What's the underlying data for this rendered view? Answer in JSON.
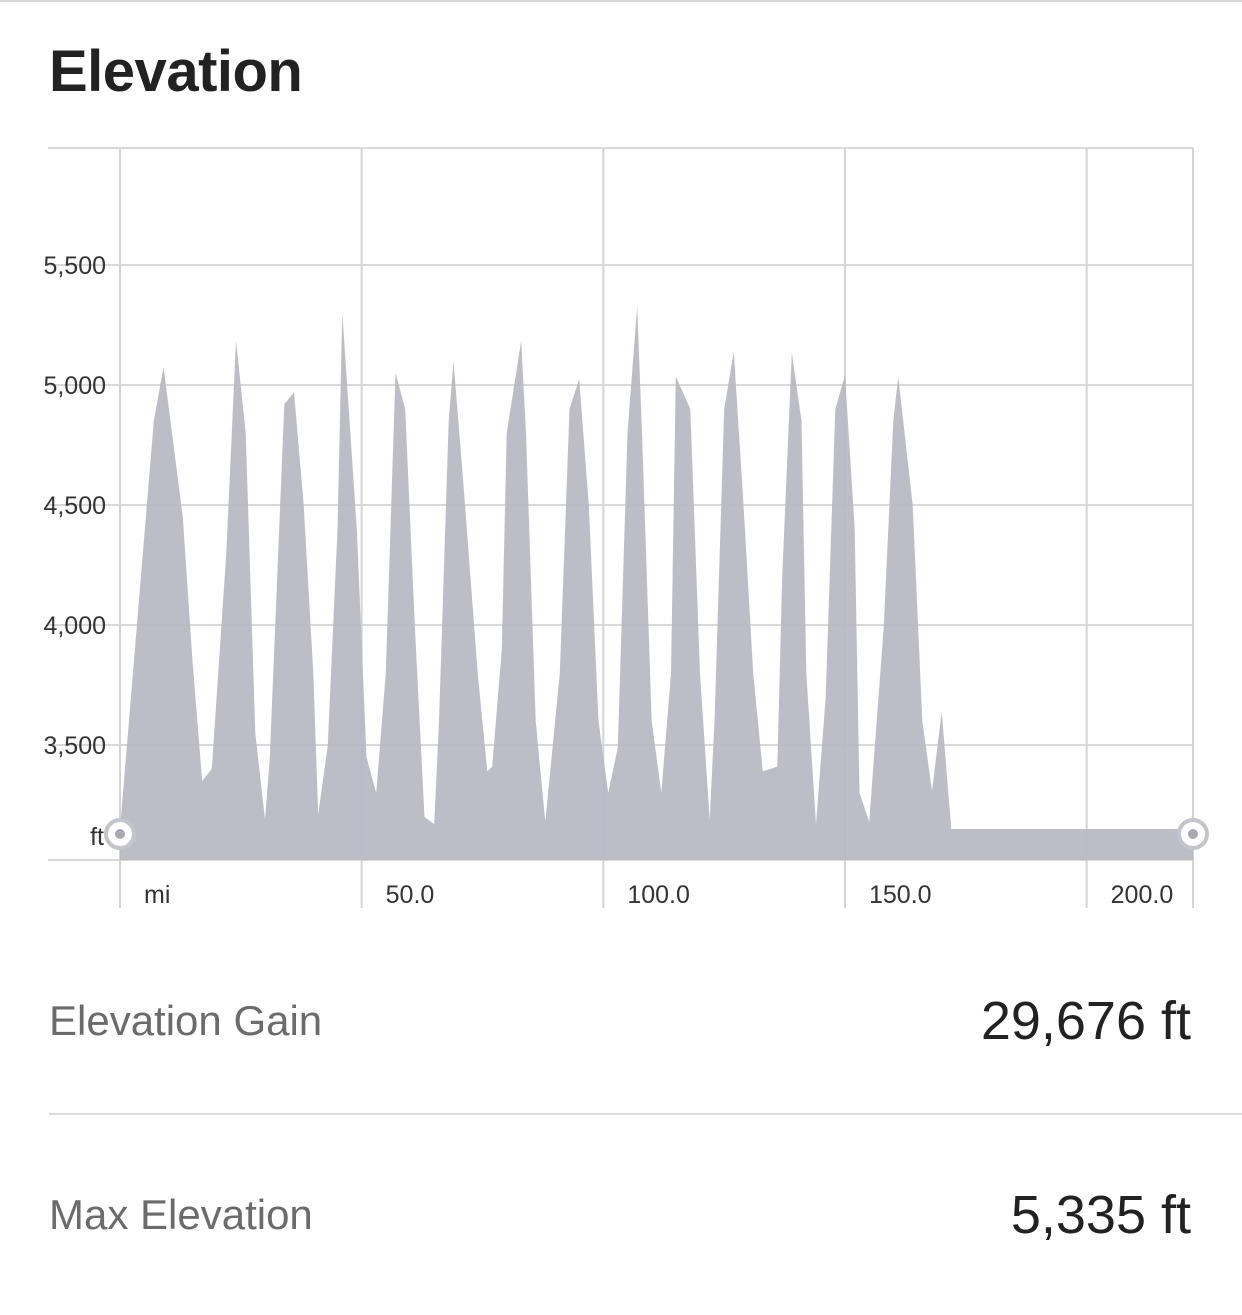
{
  "title": "Elevation",
  "chart_data": {
    "type": "area",
    "xlabel": "mi",
    "ylabel": "ft",
    "x_ticks": [
      50.0,
      100.0,
      150.0,
      200.0
    ],
    "x_tick_labels": [
      "50.0",
      "100.0",
      "150.0",
      "200.0"
    ],
    "y_ticks": [
      3500,
      4000,
      4500,
      5000,
      5500
    ],
    "y_tick_labels": [
      "3,500",
      "4,000",
      "4,500",
      "5,000",
      "5,500"
    ],
    "xlim": [
      0,
      222
    ],
    "ylim": [
      3150,
      6000
    ],
    "grid": true,
    "fill_color": "#b9b9c5",
    "series": [
      {
        "x": [
          0,
          7,
          9,
          13,
          15,
          17,
          19,
          22,
          24,
          26,
          28,
          30,
          31,
          34,
          36,
          38,
          40,
          41,
          43,
          45,
          46,
          49,
          51,
          53,
          55,
          57,
          59,
          61,
          63,
          65,
          66,
          68,
          69,
          71,
          74,
          76,
          77,
          79,
          80,
          83,
          84,
          86,
          88,
          91,
          93,
          95,
          97,
          99,
          101,
          103,
          105,
          107,
          108,
          110,
          112,
          114,
          115,
          118,
          120,
          122,
          123,
          125,
          127,
          129,
          131,
          133,
          136,
          137,
          139,
          141,
          142,
          144,
          146,
          148,
          150,
          152,
          153,
          155,
          158,
          160,
          161,
          164,
          166,
          168,
          170,
          172,
          175,
          177,
          178,
          180,
          182,
          184,
          185,
          188,
          190,
          192,
          193,
          195,
          197,
          199,
          201,
          203,
          205,
          207,
          208,
          211,
          213,
          215,
          217,
          219,
          220,
          222
        ],
        "y": [
          3150,
          4850,
          5075,
          4450,
          3850,
          3350,
          3400,
          4300,
          5185,
          4800,
          3550,
          3190,
          3450,
          4920,
          4970,
          4500,
          3800,
          3210,
          3500,
          4400,
          5300,
          4400,
          3450,
          3300,
          3800,
          5050,
          4900,
          4000,
          3200,
          3170,
          3600,
          4850,
          5100,
          4600,
          3800,
          3390,
          3410,
          3900,
          4800,
          5185,
          4800,
          3600,
          3180,
          3800,
          4900,
          5025,
          4500,
          3600,
          3300,
          3490,
          4800,
          5330,
          4800,
          3600,
          3300,
          3800,
          5035,
          4900,
          3800,
          3190,
          3600,
          4900,
          5140,
          4500,
          3800,
          3390,
          3410,
          4200,
          5135,
          4850,
          3800,
          3170,
          3700,
          4900,
          5040,
          4400,
          3300,
          3180,
          3990,
          4850,
          5035,
          4500,
          3600,
          3310,
          3640,
          3150,
          3150,
          3150,
          3150,
          3150,
          3150,
          3150,
          3150,
          3150,
          3150,
          3150,
          3150,
          3150,
          3150,
          3150,
          3150,
          3150,
          3150,
          3150,
          3150,
          3150,
          3150,
          3150,
          3150,
          3150,
          3150,
          3150
        ]
      }
    ]
  },
  "stats": {
    "gain_label": "Elevation Gain",
    "gain_value": "29,676 ft",
    "max_label": "Max Elevation",
    "max_value": "5,335 ft"
  }
}
